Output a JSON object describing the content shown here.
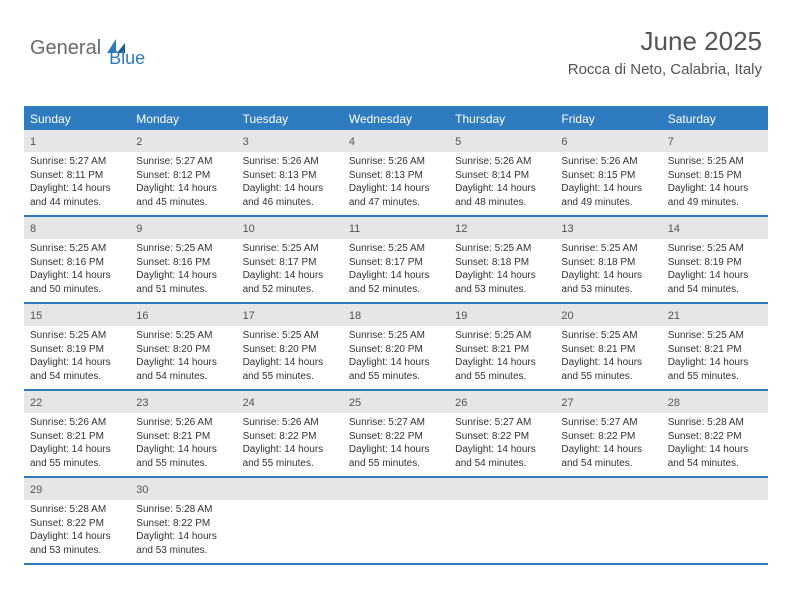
{
  "logo": {
    "general": "General",
    "blue": "Blue"
  },
  "header": {
    "month_title": "June 2025",
    "location": "Rocca di Neto, Calabria, Italy"
  },
  "colors": {
    "accent": "#2f7bbf",
    "header_bg": "#2f7bbf",
    "header_text": "#ffffff",
    "daynum_bg": "#e6e6e6",
    "text": "#333333",
    "background": "#ffffff"
  },
  "day_names": [
    "Sunday",
    "Monday",
    "Tuesday",
    "Wednesday",
    "Thursday",
    "Friday",
    "Saturday"
  ],
  "weeks": [
    [
      {
        "n": "1",
        "sr": "5:27 AM",
        "ss": "8:11 PM",
        "dl": "14 hours and 44 minutes."
      },
      {
        "n": "2",
        "sr": "5:27 AM",
        "ss": "8:12 PM",
        "dl": "14 hours and 45 minutes."
      },
      {
        "n": "3",
        "sr": "5:26 AM",
        "ss": "8:13 PM",
        "dl": "14 hours and 46 minutes."
      },
      {
        "n": "4",
        "sr": "5:26 AM",
        "ss": "8:13 PM",
        "dl": "14 hours and 47 minutes."
      },
      {
        "n": "5",
        "sr": "5:26 AM",
        "ss": "8:14 PM",
        "dl": "14 hours and 48 minutes."
      },
      {
        "n": "6",
        "sr": "5:26 AM",
        "ss": "8:15 PM",
        "dl": "14 hours and 49 minutes."
      },
      {
        "n": "7",
        "sr": "5:25 AM",
        "ss": "8:15 PM",
        "dl": "14 hours and 49 minutes."
      }
    ],
    [
      {
        "n": "8",
        "sr": "5:25 AM",
        "ss": "8:16 PM",
        "dl": "14 hours and 50 minutes."
      },
      {
        "n": "9",
        "sr": "5:25 AM",
        "ss": "8:16 PM",
        "dl": "14 hours and 51 minutes."
      },
      {
        "n": "10",
        "sr": "5:25 AM",
        "ss": "8:17 PM",
        "dl": "14 hours and 52 minutes."
      },
      {
        "n": "11",
        "sr": "5:25 AM",
        "ss": "8:17 PM",
        "dl": "14 hours and 52 minutes."
      },
      {
        "n": "12",
        "sr": "5:25 AM",
        "ss": "8:18 PM",
        "dl": "14 hours and 53 minutes."
      },
      {
        "n": "13",
        "sr": "5:25 AM",
        "ss": "8:18 PM",
        "dl": "14 hours and 53 minutes."
      },
      {
        "n": "14",
        "sr": "5:25 AM",
        "ss": "8:19 PM",
        "dl": "14 hours and 54 minutes."
      }
    ],
    [
      {
        "n": "15",
        "sr": "5:25 AM",
        "ss": "8:19 PM",
        "dl": "14 hours and 54 minutes."
      },
      {
        "n": "16",
        "sr": "5:25 AM",
        "ss": "8:20 PM",
        "dl": "14 hours and 54 minutes."
      },
      {
        "n": "17",
        "sr": "5:25 AM",
        "ss": "8:20 PM",
        "dl": "14 hours and 55 minutes."
      },
      {
        "n": "18",
        "sr": "5:25 AM",
        "ss": "8:20 PM",
        "dl": "14 hours and 55 minutes."
      },
      {
        "n": "19",
        "sr": "5:25 AM",
        "ss": "8:21 PM",
        "dl": "14 hours and 55 minutes."
      },
      {
        "n": "20",
        "sr": "5:25 AM",
        "ss": "8:21 PM",
        "dl": "14 hours and 55 minutes."
      },
      {
        "n": "21",
        "sr": "5:25 AM",
        "ss": "8:21 PM",
        "dl": "14 hours and 55 minutes."
      }
    ],
    [
      {
        "n": "22",
        "sr": "5:26 AM",
        "ss": "8:21 PM",
        "dl": "14 hours and 55 minutes."
      },
      {
        "n": "23",
        "sr": "5:26 AM",
        "ss": "8:21 PM",
        "dl": "14 hours and 55 minutes."
      },
      {
        "n": "24",
        "sr": "5:26 AM",
        "ss": "8:22 PM",
        "dl": "14 hours and 55 minutes."
      },
      {
        "n": "25",
        "sr": "5:27 AM",
        "ss": "8:22 PM",
        "dl": "14 hours and 55 minutes."
      },
      {
        "n": "26",
        "sr": "5:27 AM",
        "ss": "8:22 PM",
        "dl": "14 hours and 54 minutes."
      },
      {
        "n": "27",
        "sr": "5:27 AM",
        "ss": "8:22 PM",
        "dl": "14 hours and 54 minutes."
      },
      {
        "n": "28",
        "sr": "5:28 AM",
        "ss": "8:22 PM",
        "dl": "14 hours and 54 minutes."
      }
    ],
    [
      {
        "n": "29",
        "sr": "5:28 AM",
        "ss": "8:22 PM",
        "dl": "14 hours and 53 minutes."
      },
      {
        "n": "30",
        "sr": "5:28 AM",
        "ss": "8:22 PM",
        "dl": "14 hours and 53 minutes."
      },
      null,
      null,
      null,
      null,
      null
    ]
  ],
  "labels": {
    "sunrise": "Sunrise:",
    "sunset": "Sunset:",
    "daylight": "Daylight:"
  }
}
